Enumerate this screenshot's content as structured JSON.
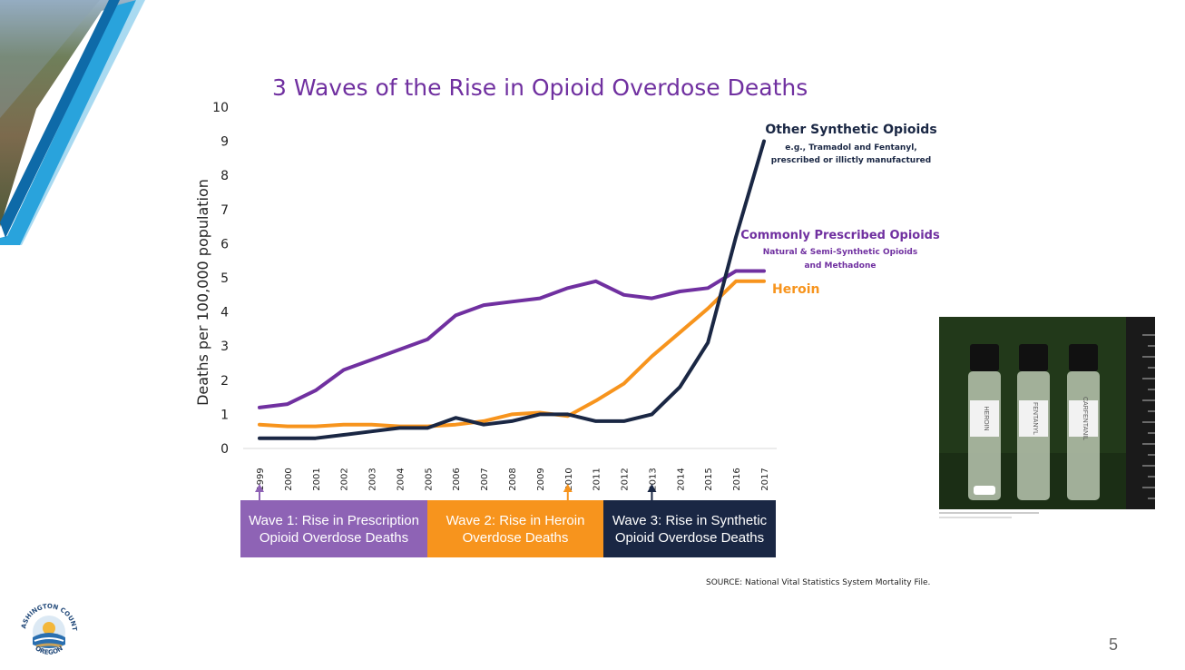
{
  "slide": {
    "title": "3 Waves of the Rise in Opioid Overdose Deaths",
    "page_number": "5",
    "source": "SOURCE: National Vital Statistics System Mortality File."
  },
  "annotations": {
    "synthetic": {
      "title": "Other Synthetic Opioids",
      "line1": "e.g., Tramadol and Fentanyl,",
      "line2": "prescribed or illictly manufactured",
      "color": "#1a2744"
    },
    "prescribed": {
      "title": "Commonly Prescribed Opioids",
      "line1": "Natural & Semi-Synthetic Opioids",
      "line2": "and Methadone",
      "color": "#7030a0"
    },
    "heroin": {
      "title": "Heroin",
      "color": "#f7941d"
    }
  },
  "waves": [
    {
      "label": "Wave 1: Rise in Prescription Opioid Overdose Deaths",
      "year": "1999",
      "color": "#8e63b5"
    },
    {
      "label": "Wave 2: Rise in Heroin Overdose Deaths",
      "year": "2010",
      "color": "#f7941d"
    },
    {
      "label": "Wave 3: Rise in Synthetic Opioid Overdose Deaths",
      "year": "2013",
      "color": "#1a2744"
    }
  ],
  "photo": {
    "vials": [
      "HEROIN",
      "FENTANYL",
      "CARFENTANIL"
    ]
  },
  "logo": {
    "top_text": "WASHINGTON COUNTY",
    "bottom_text": "OREGON"
  },
  "chart_data": {
    "type": "line",
    "title": "3 Waves of the Rise in Opioid Overdose Deaths",
    "xlabel": "",
    "ylabel": "Deaths per 100,000 population",
    "x": [
      "1999",
      "2000",
      "2001",
      "2002",
      "2003",
      "2004",
      "2005",
      "2006",
      "2007",
      "2008",
      "2009",
      "2010",
      "2011",
      "2012",
      "2013",
      "2014",
      "2015",
      "2016",
      "2017"
    ],
    "ylim": [
      0,
      10
    ],
    "yticks": [
      0,
      1,
      2,
      3,
      4,
      5,
      6,
      7,
      8,
      9,
      10
    ],
    "grid": false,
    "series": [
      {
        "name": "Commonly Prescribed Opioids",
        "color": "#7030a0",
        "values": [
          1.2,
          1.3,
          1.7,
          2.3,
          2.6,
          2.9,
          3.2,
          3.9,
          4.2,
          4.3,
          4.4,
          4.7,
          4.9,
          4.5,
          4.4,
          4.6,
          4.7,
          5.2,
          5.2
        ]
      },
      {
        "name": "Heroin",
        "color": "#f7941d",
        "values": [
          0.7,
          0.65,
          0.65,
          0.7,
          0.7,
          0.65,
          0.65,
          0.7,
          0.8,
          1.0,
          1.05,
          0.95,
          1.4,
          1.9,
          2.7,
          3.4,
          4.1,
          4.9,
          4.9
        ]
      },
      {
        "name": "Other Synthetic Opioids",
        "color": "#1a2744",
        "values": [
          0.3,
          0.3,
          0.3,
          0.4,
          0.5,
          0.6,
          0.6,
          0.9,
          0.7,
          0.8,
          1.0,
          1.0,
          0.8,
          0.8,
          1.0,
          1.8,
          3.1,
          6.2,
          9.0
        ]
      }
    ]
  }
}
